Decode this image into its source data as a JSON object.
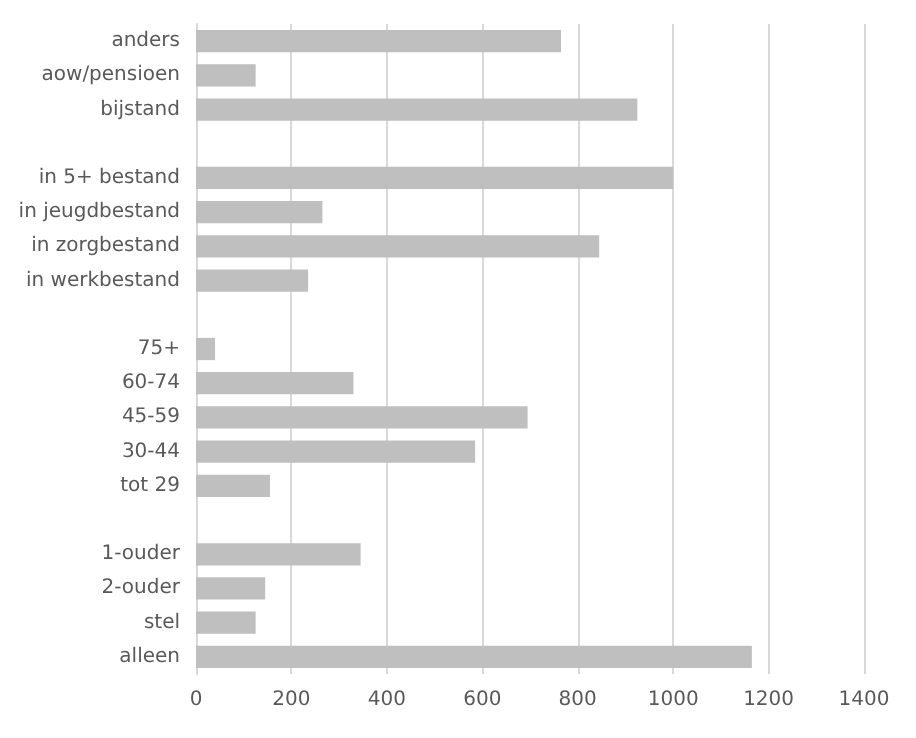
{
  "chart_data": {
    "type": "bar",
    "orientation": "horizontal",
    "categories": [
      "anders",
      "aow/pensioen",
      "bijstand",
      null,
      "in 5+ bestand",
      "in jeugdbestand",
      "in zorgbestand",
      "in werkbestand",
      null,
      "75+",
      "60-74",
      "45-59",
      "30-44",
      "tot 29",
      null,
      "1-ouder",
      "2-ouder",
      "stel",
      "alleen"
    ],
    "values": [
      765,
      125,
      925,
      null,
      1000,
      265,
      845,
      235,
      null,
      40,
      330,
      695,
      585,
      155,
      null,
      345,
      145,
      125,
      1165
    ],
    "color": "#bfbfbf",
    "xlim": [
      0,
      1400
    ],
    "xticks": [
      0,
      200,
      400,
      600,
      800,
      1000,
      1200,
      1400
    ],
    "grid": "x"
  }
}
